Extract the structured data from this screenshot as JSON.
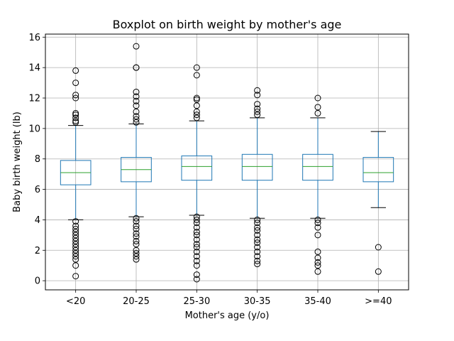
{
  "chart_data": {
    "type": "box",
    "title": "Boxplot on birth weight by mother's age",
    "xlabel": "Mother's age (y/o)",
    "ylabel": "Baby birth weight (lb)",
    "ylim": [
      -0.6,
      16.2
    ],
    "yticks": [
      0,
      2,
      4,
      6,
      8,
      10,
      12,
      14,
      16
    ],
    "grid": true,
    "categories": [
      "<20",
      "20-25",
      "25-30",
      "30-35",
      "35-40",
      ">=40"
    ],
    "boxes": [
      {
        "category": "<20",
        "whisker_low": 4.0,
        "q1": 6.3,
        "median": 7.1,
        "q3": 7.9,
        "whisker_high": 10.2,
        "outliers": [
          13.8,
          13.0,
          12.2,
          12.0,
          11.0,
          10.9,
          10.7,
          10.5,
          10.4,
          3.9,
          3.6,
          3.4,
          3.2,
          3.0,
          2.8,
          2.6,
          2.4,
          2.2,
          2.0,
          1.8,
          1.6,
          1.4,
          1.0,
          0.3
        ]
      },
      {
        "category": "20-25",
        "whisker_low": 4.2,
        "q1": 6.5,
        "median": 7.3,
        "q3": 8.1,
        "whisker_high": 10.3,
        "outliers": [
          15.4,
          14.0,
          14.0,
          12.4,
          12.1,
          11.8,
          11.5,
          11.1,
          10.8,
          10.6,
          10.4,
          4.1,
          3.9,
          3.6,
          3.4,
          3.1,
          2.9,
          2.6,
          2.4,
          2.0,
          1.8,
          1.6,
          1.4
        ]
      },
      {
        "category": "25-30",
        "whisker_low": 4.3,
        "q1": 6.6,
        "median": 7.5,
        "q3": 8.2,
        "whisker_high": 10.5,
        "outliers": [
          14.0,
          13.5,
          12.0,
          11.9,
          11.5,
          11.1,
          10.9,
          10.7,
          4.2,
          4.0,
          3.8,
          3.5,
          3.2,
          3.0,
          2.7,
          2.4,
          2.2,
          1.9,
          1.6,
          1.3,
          1.0,
          0.4,
          0.1
        ]
      },
      {
        "category": "30-35",
        "whisker_low": 4.1,
        "q1": 6.6,
        "median": 7.5,
        "q3": 8.3,
        "whisker_high": 10.7,
        "outliers": [
          12.5,
          12.2,
          11.6,
          11.3,
          11.1,
          10.9,
          4.0,
          3.8,
          3.5,
          3.3,
          3.0,
          2.7,
          2.5,
          2.2,
          1.9,
          1.6,
          1.3,
          1.1
        ]
      },
      {
        "category": "35-40",
        "whisker_low": 4.1,
        "q1": 6.6,
        "median": 7.5,
        "q3": 8.3,
        "whisker_high": 10.7,
        "outliers": [
          12.0,
          11.4,
          11.0,
          4.0,
          3.8,
          3.5,
          3.0,
          1.9,
          1.5,
          1.2,
          1.0,
          0.6
        ]
      },
      {
        "category": ">=40",
        "whisker_low": 4.8,
        "q1": 6.5,
        "median": 7.1,
        "q3": 8.1,
        "whisker_high": 9.8,
        "outliers": [
          2.2,
          0.6
        ]
      }
    ],
    "colors": {
      "box": "#1f77b4",
      "median": "#2ca02c",
      "whisker": "#1f77b4",
      "cap": "#000000",
      "outlier": "#000000",
      "grid": "#b0b0b0"
    }
  }
}
